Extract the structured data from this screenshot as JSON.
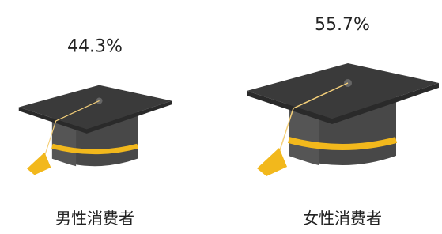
{
  "chart_data": {
    "type": "pictorial",
    "categories": [
      "男性消费者",
      "女性消费者"
    ],
    "values": [
      44.3,
      55.7
    ],
    "value_labels": [
      "44.3%",
      "55.7%"
    ],
    "color": "#f2b81c"
  }
}
